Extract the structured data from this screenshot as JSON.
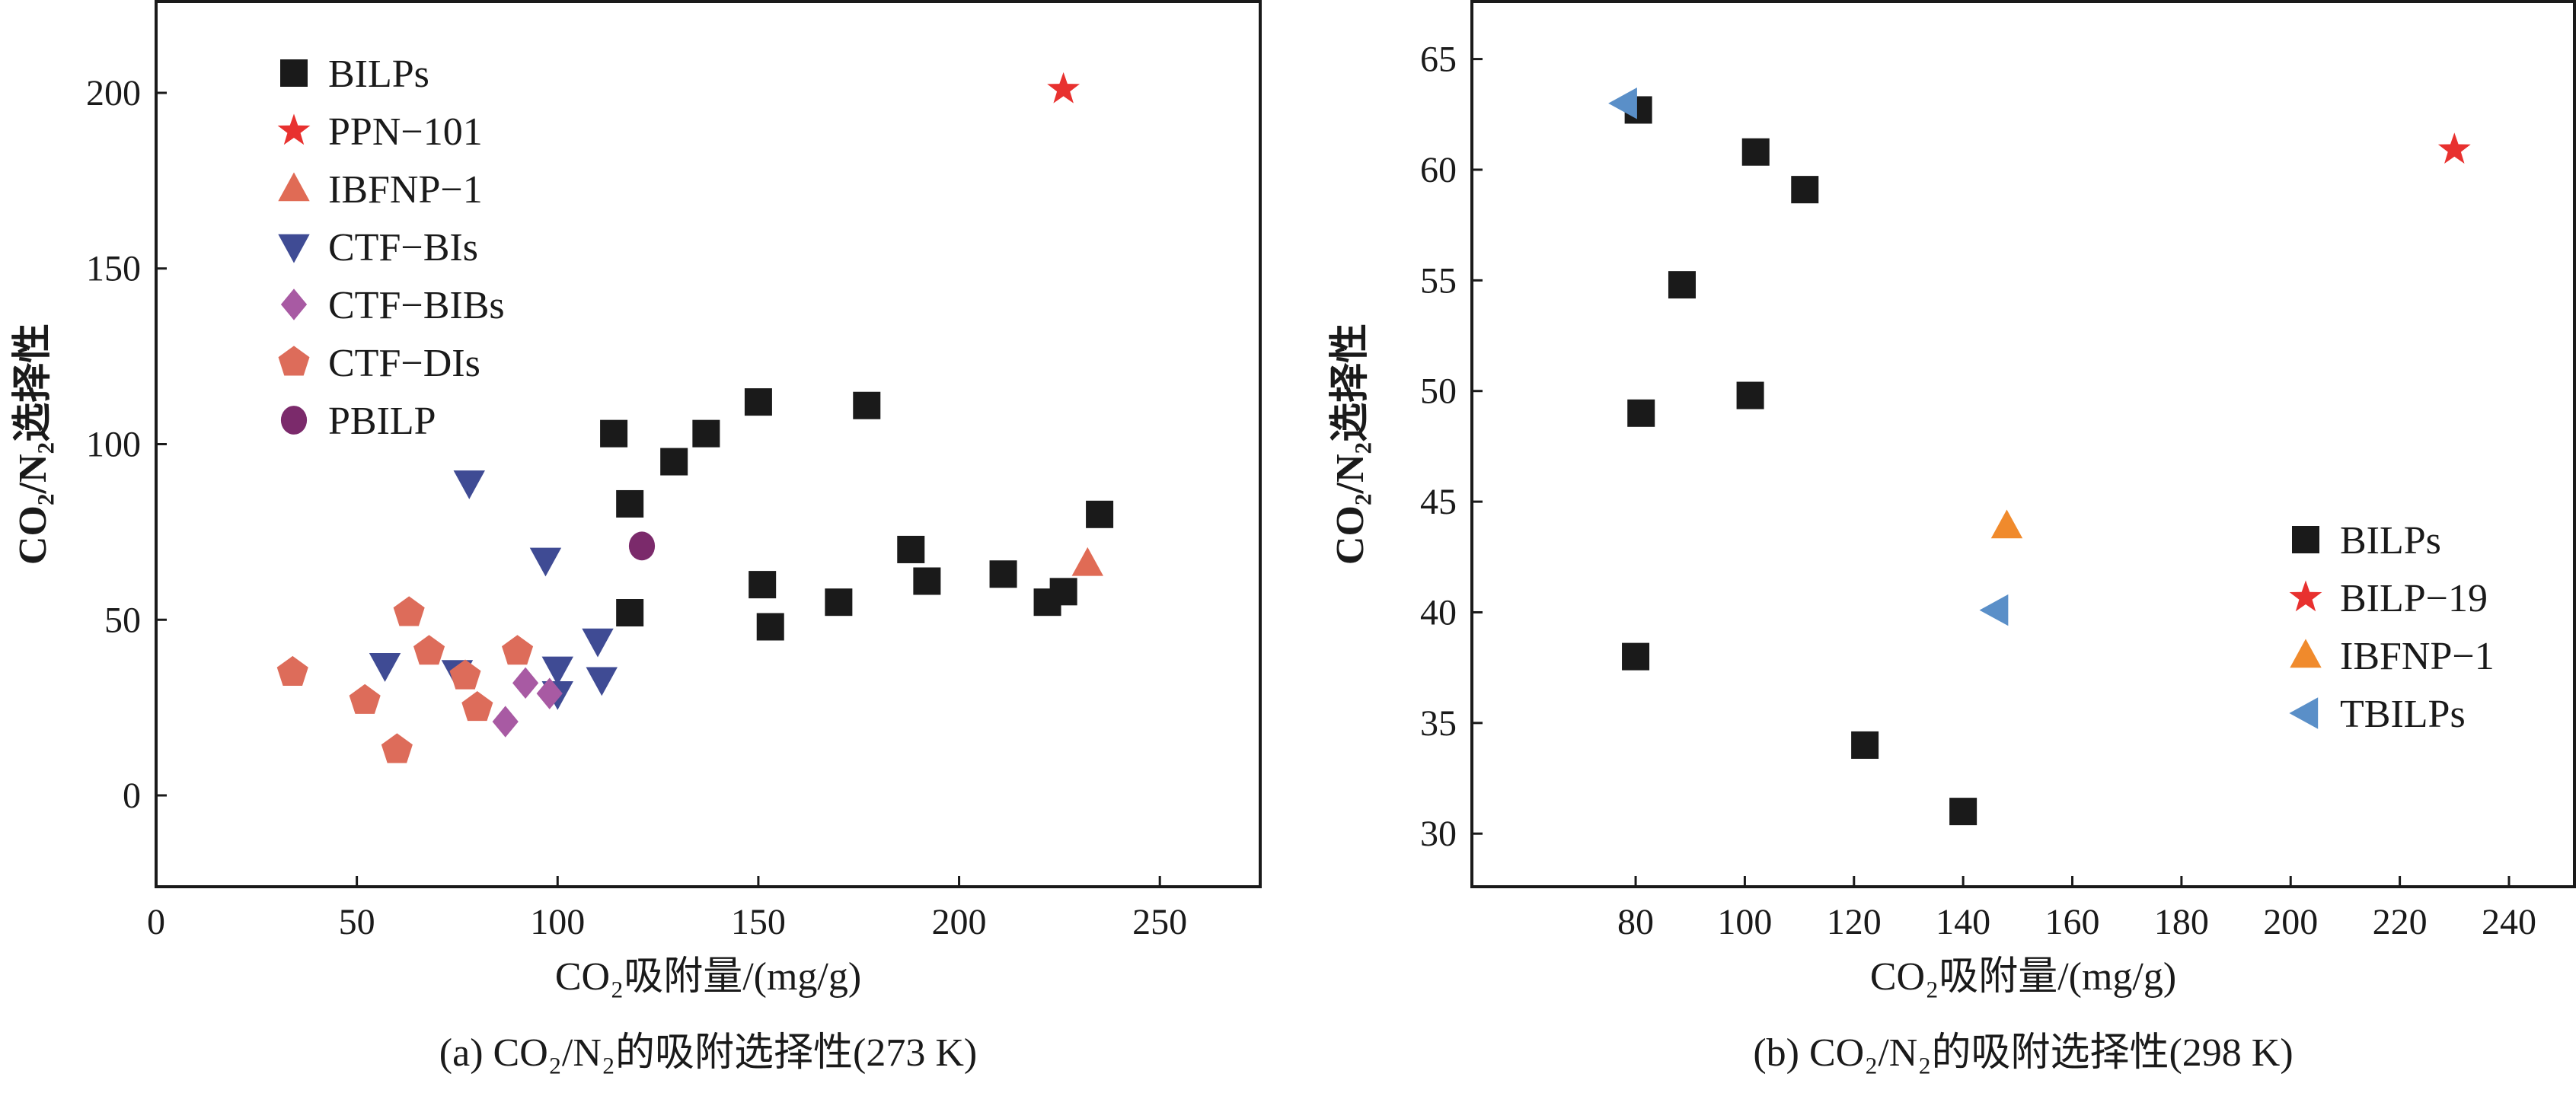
{
  "chart_data": [
    {
      "type": "scatter",
      "caption": "(a) CO₂/N₂的吸附选择性(273 K)",
      "xlabel": "CO₂吸附量/(mg/g)",
      "ylabel": "CO₂/N₂选择性",
      "xlim": [
        0,
        275
      ],
      "ylim": [
        -26,
        226
      ],
      "xticks": [
        0,
        50,
        100,
        150,
        200,
        250
      ],
      "yticks": [
        0,
        50,
        100,
        150,
        200
      ],
      "legend_position": "top-left",
      "series": [
        {
          "name": "BILPs",
          "marker": "square",
          "color": "#1a1a1a",
          "points": [
            [
              114,
              103
            ],
            [
              118,
              83
            ],
            [
              118,
              52
            ],
            [
              129,
              95
            ],
            [
              137,
              103
            ],
            [
              150,
              112
            ],
            [
              151,
              60
            ],
            [
              153,
              48
            ],
            [
              170,
              55
            ],
            [
              177,
              111
            ],
            [
              188,
              70
            ],
            [
              192,
              61
            ],
            [
              211,
              63
            ],
            [
              222,
              55
            ],
            [
              226,
              58
            ],
            [
              235,
              80
            ]
          ]
        },
        {
          "name": "PPN−101",
          "marker": "star",
          "color": "#e8312f",
          "points": [
            [
              226,
              201
            ]
          ]
        },
        {
          "name": "IBFNP−1",
          "marker": "triangle-up",
          "color": "#e06b55",
          "points": [
            [
              232,
              66
            ]
          ]
        },
        {
          "name": "CTF−BIs",
          "marker": "triangle-down",
          "color": "#3f4b94",
          "points": [
            [
              57,
              37
            ],
            [
              75,
              35
            ],
            [
              78,
              89
            ],
            [
              97,
              67
            ],
            [
              100,
              36
            ],
            [
              100,
              29
            ],
            [
              110,
              44
            ],
            [
              111,
              33
            ]
          ]
        },
        {
          "name": "CTF−BIBs",
          "marker": "diamond",
          "color": "#a85aa3",
          "points": [
            [
              87,
              21
            ],
            [
              92,
              32
            ],
            [
              98,
              29
            ]
          ]
        },
        {
          "name": "CTF−DIs",
          "marker": "pentagon",
          "color": "#dd6c5a",
          "points": [
            [
              34,
              35
            ],
            [
              52,
              27
            ],
            [
              60,
              13
            ],
            [
              63,
              52
            ],
            [
              68,
              41
            ],
            [
              77,
              34
            ],
            [
              80,
              25
            ],
            [
              90,
              41
            ]
          ]
        },
        {
          "name": "PBILP",
          "marker": "circle",
          "color": "#7b2a6b",
          "points": [
            [
              121,
              71
            ]
          ]
        }
      ]
    },
    {
      "type": "scatter",
      "caption": "(b) CO₂/N₂的吸附选择性(298 K)",
      "xlabel": "CO₂吸附量/(mg/g)",
      "ylabel": "CO₂/N₂选择性",
      "xlim": [
        50,
        252
      ],
      "ylim": [
        27.6,
        67.6
      ],
      "xticks": [
        80,
        100,
        120,
        140,
        160,
        180,
        200,
        220,
        240
      ],
      "yticks": [
        30,
        35,
        40,
        45,
        50,
        55,
        60,
        65
      ],
      "legend_position": "bottom-right",
      "series": [
        {
          "name": "BILPs",
          "marker": "square",
          "color": "#1a1a1a",
          "points": [
            [
              80.5,
              62.7
            ],
            [
              102,
              60.8
            ],
            [
              111,
              59.1
            ],
            [
              88.5,
              54.8
            ],
            [
              81,
              49
            ],
            [
              101,
              49.8
            ],
            [
              80,
              38
            ],
            [
              122,
              34
            ],
            [
              140,
              31
            ]
          ]
        },
        {
          "name": "BILP−19",
          "marker": "star",
          "color": "#e8312f",
          "points": [
            [
              230,
              60.9
            ]
          ]
        },
        {
          "name": "IBFNP−1",
          "marker": "triangle-up",
          "color": "#f08a2c",
          "points": [
            [
              148,
              43.9
            ]
          ]
        },
        {
          "name": "TBILPs",
          "marker": "triangle-left",
          "color": "#5a8fc8",
          "points": [
            [
              78,
              63
            ],
            [
              146,
              40.1
            ]
          ]
        }
      ]
    }
  ]
}
